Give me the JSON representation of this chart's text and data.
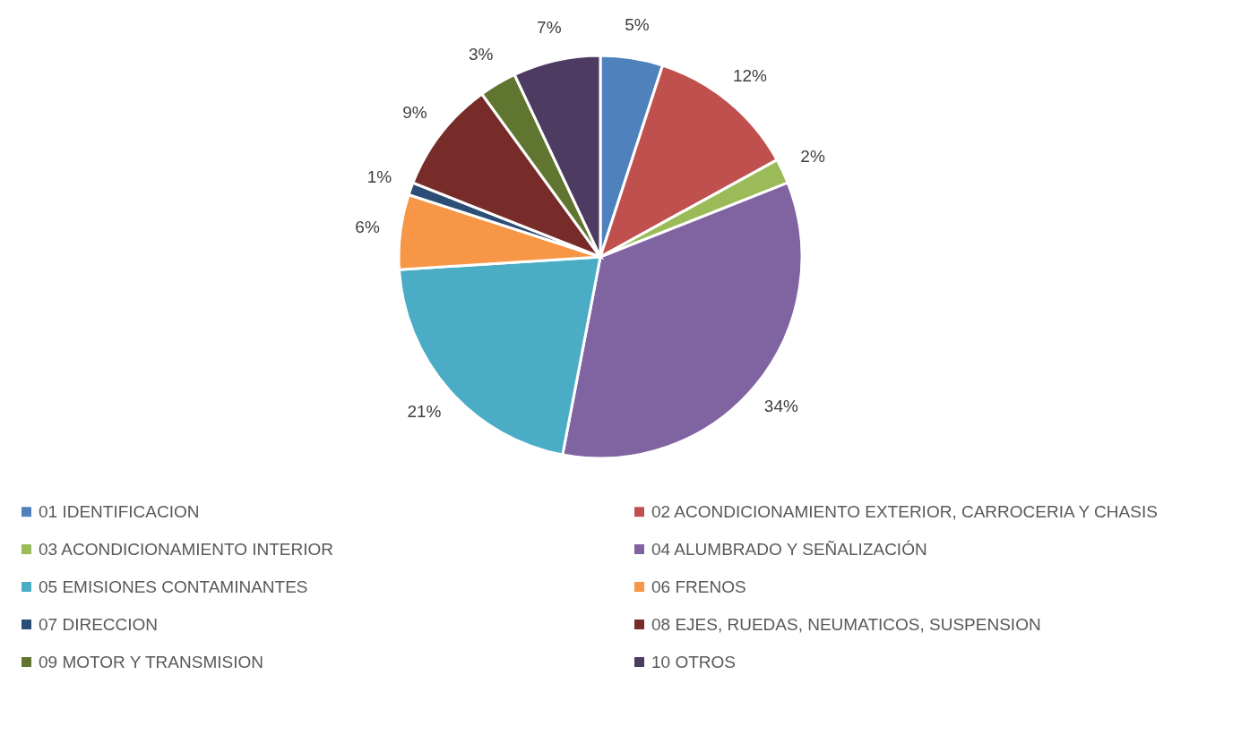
{
  "chart_data": {
    "type": "pie",
    "categories": [
      "01 IDENTIFICACION",
      "02 ACONDICIONAMIENTO EXTERIOR, CARROCERIA Y CHASIS",
      "03 ACONDICIONAMIENTO INTERIOR",
      "04 ALUMBRADO Y SEÑALIZACIÓN",
      "05 EMISIONES CONTAMINANTES",
      "06 FRENOS",
      "07 DIRECCION",
      "08 EJES, RUEDAS, NEUMATICOS, SUSPENSION",
      "09 MOTOR Y TRANSMISION",
      "10 OTROS"
    ],
    "values": [
      5,
      12,
      2,
      34,
      21,
      6,
      1,
      9,
      3,
      7
    ],
    "value_labels": [
      "5%",
      "12%",
      "2%",
      "34%",
      "21%",
      "6%",
      "1%",
      "9%",
      "3%",
      "7%"
    ],
    "colors": [
      "#4f81bd",
      "#c0504d",
      "#9bbb59",
      "#8064a2",
      "#4bacc6",
      "#f79646",
      "#2c4d75",
      "#772c2a",
      "#5f7530",
      "#4d3b62"
    ],
    "legend": "bottom"
  }
}
